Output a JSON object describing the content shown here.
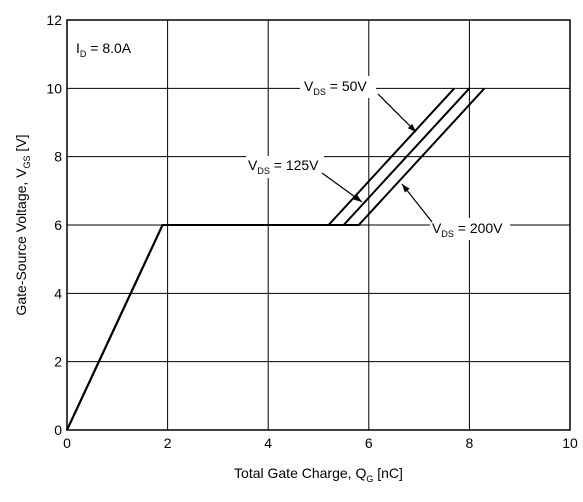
{
  "chart_data": {
    "type": "line",
    "x_label_parts": [
      "Total Gate Charge, Q",
      "G",
      " [nC]"
    ],
    "y_label_parts": [
      "Gate-Source Voltage, V",
      "GS",
      " [V]"
    ],
    "annotation_parts": [
      "I",
      "D",
      " = 8.0A"
    ],
    "xlim": [
      0,
      10
    ],
    "xticks": [
      0,
      2,
      4,
      6,
      8,
      10
    ],
    "ylim": [
      0,
      12
    ],
    "yticks": [
      0,
      2,
      4,
      6,
      8,
      10,
      12
    ],
    "grid": true,
    "color": "#000000",
    "series": [
      {
        "name_parts": [
          "V",
          "DS",
          " = 50V"
        ],
        "x": [
          0,
          1.9,
          5.2,
          7.7
        ],
        "values": [
          0,
          6,
          6,
          10
        ]
      },
      {
        "name_parts": [
          "V",
          "DS",
          " = 125V"
        ],
        "x": [
          0,
          1.9,
          5.5,
          8.0
        ],
        "values": [
          0,
          6,
          6,
          10
        ]
      },
      {
        "name_parts": [
          "V",
          "DS",
          " = 200V"
        ],
        "x": [
          0,
          1.9,
          5.8,
          8.3
        ],
        "values": [
          0,
          6,
          6,
          10
        ]
      }
    ]
  }
}
